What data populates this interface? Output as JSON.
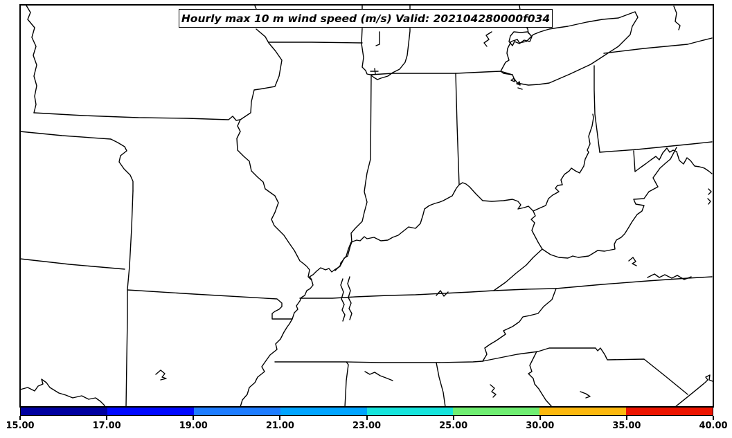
{
  "title": {
    "text": "Hourly max 10 m wind speed (m/s) Valid: 202104280000f034"
  },
  "colorbar": {
    "levels": [
      15,
      17,
      19,
      21,
      23,
      25,
      30,
      35,
      40
    ],
    "tick_labels": [
      "15.00",
      "17.00",
      "19.00",
      "21.00",
      "23.00",
      "25.00",
      "30.00",
      "35.00",
      "40.00"
    ],
    "segment_colors": [
      "#0000a0",
      "#0008ff",
      "#1e7cff",
      "#00a4ff",
      "#16e4dc",
      "#70ee72",
      "#fcb80e",
      "#ec1400"
    ],
    "outline_color": "#000000"
  },
  "map": {
    "background": "#ffffff",
    "boundary_color": "#000000",
    "features": [
      "state-boundaries",
      "mississippi-river",
      "ohio-river",
      "missouri-river",
      "wabash-river",
      "lake-michigan",
      "lake-erie",
      "atlantic-coast"
    ]
  }
}
